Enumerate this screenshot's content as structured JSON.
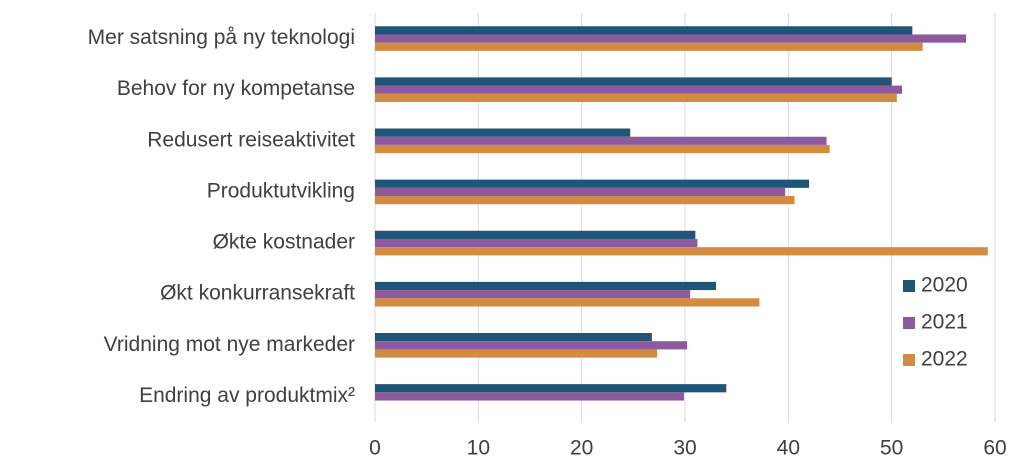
{
  "chart_data": {
    "type": "barh",
    "categories": [
      "Mer satsning på ny teknologi",
      "Behov for ny kompetanse",
      "Redusert reiseaktivitet",
      "Produktutvikling",
      "Økte kostnader",
      "Økt konkurransekraft",
      "Vridning mot nye markeder",
      "Endring av produktmix²"
    ],
    "series": [
      {
        "name": "2020",
        "color": "#1f5577",
        "values": [
          52,
          50,
          24.7,
          42,
          31,
          33,
          26.8,
          34
        ]
      },
      {
        "name": "2021",
        "color": "#8e5a9e",
        "values": [
          57.2,
          51,
          43.7,
          39.7,
          31.2,
          30.5,
          30.2,
          29.9
        ]
      },
      {
        "name": "2022",
        "color": "#d38b3f",
        "values": [
          53,
          50.5,
          44,
          40.6,
          59.3,
          37.2,
          27.3,
          null
        ]
      }
    ],
    "xlim": [
      0,
      60
    ],
    "xticks": [
      0,
      10,
      20,
      30,
      40,
      50,
      60
    ],
    "grid": true,
    "legend": "right"
  }
}
